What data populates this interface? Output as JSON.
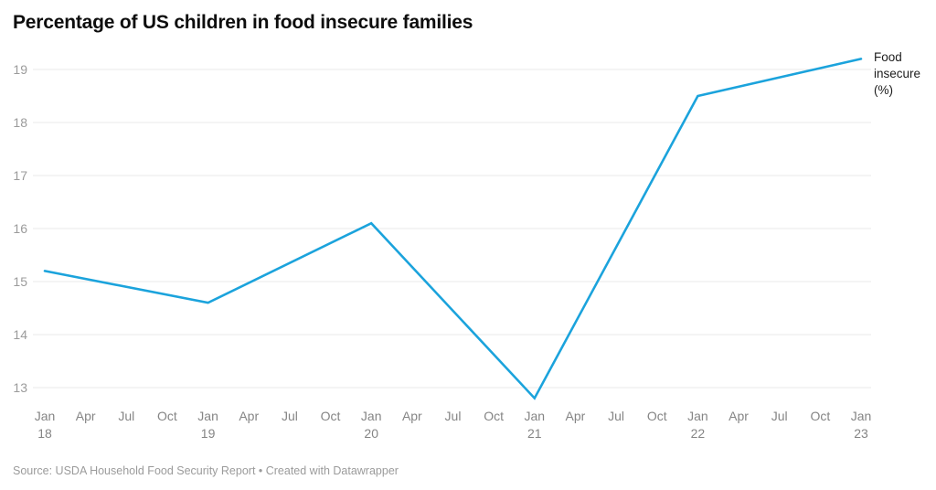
{
  "header": {
    "title": "Percentage of US children in food insecure families"
  },
  "legend": {
    "label": "Food insecure (%)"
  },
  "footer": {
    "source": "Source: USDA Household Food Security Report • Created with Datawrapper"
  },
  "chart_data": {
    "type": "line",
    "title": "Percentage of US children in food insecure families",
    "xlabel": "",
    "ylabel": "Food insecure (%)",
    "grid": true,
    "legend_position": "right of line end",
    "ylim": [
      12.7,
      19.3
    ],
    "y_ticks": [
      13,
      14,
      15,
      16,
      17,
      18,
      19
    ],
    "x_tick_labels": [
      {
        "month": "Jan",
        "year": "18"
      },
      {
        "month": "Apr",
        "year": ""
      },
      {
        "month": "Jul",
        "year": ""
      },
      {
        "month": "Oct",
        "year": ""
      },
      {
        "month": "Jan",
        "year": "19"
      },
      {
        "month": "Apr",
        "year": ""
      },
      {
        "month": "Jul",
        "year": ""
      },
      {
        "month": "Oct",
        "year": ""
      },
      {
        "month": "Jan",
        "year": "20"
      },
      {
        "month": "Apr",
        "year": ""
      },
      {
        "month": "Jul",
        "year": ""
      },
      {
        "month": "Oct",
        "year": ""
      },
      {
        "month": "Jan",
        "year": "21"
      },
      {
        "month": "Apr",
        "year": ""
      },
      {
        "month": "Jul",
        "year": ""
      },
      {
        "month": "Oct",
        "year": ""
      },
      {
        "month": "Jan",
        "year": "22"
      },
      {
        "month": "Apr",
        "year": ""
      },
      {
        "month": "Jul",
        "year": ""
      },
      {
        "month": "Oct",
        "year": ""
      },
      {
        "month": "Jan",
        "year": "23"
      }
    ],
    "series": [
      {
        "name": "Food insecure (%)",
        "color": "#1ba3dc",
        "points": [
          {
            "x_label": "Jan 18",
            "x_index": 0,
            "value": 15.2
          },
          {
            "x_label": "Jan 19",
            "x_index": 4,
            "value": 14.6
          },
          {
            "x_label": "Jan 20",
            "x_index": 8,
            "value": 16.1
          },
          {
            "x_label": "Jan 21",
            "x_index": 12,
            "value": 12.8
          },
          {
            "x_label": "Jan 22",
            "x_index": 16,
            "value": 18.5
          },
          {
            "x_label": "Jan 23",
            "x_index": 20,
            "value": 19.2
          }
        ]
      }
    ],
    "colors": {
      "line": "#1ba3dc",
      "grid": "#eaeaea",
      "y_axis_text": "#9b9b9b",
      "x_axis_text": "#858585",
      "title_text": "#0d0d0d",
      "legend_text": "#1d1d1d",
      "source_text": "#9b9b9b",
      "background": "#ffffff"
    }
  }
}
